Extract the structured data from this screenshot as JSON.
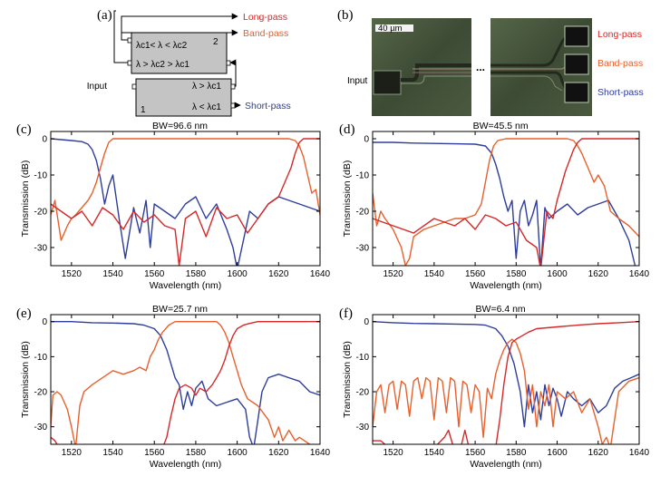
{
  "figure": {
    "panel_a": {
      "label": "(a)",
      "box2_number": "2",
      "box1_number": "1",
      "box2_row1": "λc1< λ < λc2",
      "box2_row2": "λ > λc2 > λc1",
      "box1_row1": "λ > λc1",
      "box1_row2": "λ < λc1",
      "input_label": "Input",
      "outputs": [
        {
          "name": "Long-pass",
          "color": "#d62828"
        },
        {
          "name": "Band-pass",
          "color": "#e8602c"
        },
        {
          "name": "Short-pass",
          "color": "#2e3d9c"
        }
      ]
    },
    "panel_b": {
      "label": "(b)",
      "scale_bar": "40 µm",
      "input_label": "Input",
      "ellipsis": "...",
      "outputs": [
        {
          "name": "Long-pass",
          "color": "#d62828"
        },
        {
          "name": "Band-pass",
          "color": "#e8602c"
        },
        {
          "name": "Short-pass",
          "color": "#2e3d9c"
        }
      ]
    }
  },
  "colors": {
    "long_pass": "#d62828",
    "band_pass": "#e8602c",
    "short_pass": "#2e3d9c"
  },
  "chart_data": [
    {
      "panel": "(c)",
      "type": "line",
      "bw_label": "BW=96.6 nm",
      "xlabel": "Wavelength (nm)",
      "ylabel": "Transmission (dB)",
      "xlim": [
        1510,
        1640
      ],
      "ylim": [
        -35,
        2
      ],
      "xticks": [
        1520,
        1540,
        1560,
        1580,
        1600,
        1620,
        1640
      ],
      "yticks": [
        0,
        -10,
        -20,
        -30
      ],
      "series": [
        {
          "name": "Short-pass",
          "color": "#2e3d9c",
          "x": [
            1510,
            1520,
            1525,
            1528,
            1530,
            1532,
            1534,
            1536,
            1538,
            1540,
            1543,
            1546,
            1550,
            1553,
            1556,
            1558,
            1560,
            1565,
            1570,
            1575,
            1580,
            1585,
            1590,
            1595,
            1598,
            1600,
            1603,
            1606,
            1610,
            1615,
            1620,
            1625,
            1630,
            1635,
            1640
          ],
          "values": [
            0,
            -0.5,
            -0.8,
            -1.5,
            -3,
            -6,
            -11,
            -18,
            -13,
            -10,
            -22,
            -33,
            -19,
            -26,
            -17,
            -30,
            -18,
            -20,
            -22,
            -18,
            -16,
            -22,
            -18,
            -25,
            -30,
            -36,
            -28,
            -20,
            -22,
            -18,
            -16,
            -17,
            -18,
            -19,
            -20
          ]
        },
        {
          "name": "Band-pass",
          "color": "#e8602c",
          "x": [
            1510,
            1512,
            1515,
            1518,
            1520,
            1522,
            1525,
            1528,
            1530,
            1532,
            1534,
            1536,
            1538,
            1540,
            1545,
            1550,
            1560,
            1570,
            1580,
            1590,
            1600,
            1610,
            1620,
            1625,
            1628,
            1630,
            1632,
            1634,
            1636,
            1638,
            1640
          ],
          "values": [
            -21,
            -17,
            -28,
            -24,
            -22,
            -21,
            -19,
            -17,
            -15,
            -12,
            -8,
            -4,
            -1,
            0,
            0,
            0,
            0,
            0,
            0,
            0,
            0,
            0,
            0,
            0,
            -0.5,
            -2,
            -5,
            -10,
            -15,
            -14,
            -21
          ]
        },
        {
          "name": "Long-pass",
          "color": "#d62828",
          "x": [
            1510,
            1515,
            1520,
            1525,
            1530,
            1535,
            1540,
            1545,
            1550,
            1555,
            1560,
            1565,
            1570,
            1572,
            1575,
            1580,
            1585,
            1590,
            1595,
            1600,
            1605,
            1610,
            1615,
            1620,
            1623,
            1626,
            1628,
            1630,
            1632,
            1635,
            1640
          ],
          "values": [
            -18,
            -20,
            -22,
            -20,
            -24,
            -19,
            -21,
            -25,
            -20,
            -23,
            -21,
            -24,
            -25,
            -35,
            -22,
            -20,
            -27,
            -19,
            -22,
            -21,
            -26,
            -22,
            -18,
            -16,
            -12,
            -8,
            -4,
            -1,
            0,
            0,
            0
          ]
        }
      ]
    },
    {
      "panel": "(d)",
      "type": "line",
      "bw_label": "BW=45.5 nm",
      "xlabel": "Wavelength (nm)",
      "ylabel": "Transmission (dB)",
      "xlim": [
        1510,
        1640
      ],
      "ylim": [
        -35,
        2
      ],
      "xticks": [
        1520,
        1540,
        1560,
        1580,
        1600,
        1620,
        1640
      ],
      "yticks": [
        0,
        -10,
        -20,
        -30
      ],
      "series": [
        {
          "name": "Short-pass",
          "color": "#2e3d9c",
          "x": [
            1510,
            1520,
            1530,
            1540,
            1550,
            1560,
            1565,
            1568,
            1570,
            1572,
            1574,
            1576,
            1578,
            1580,
            1582,
            1584,
            1586,
            1588,
            1590,
            1592,
            1594,
            1596,
            1600,
            1605,
            1610,
            1615,
            1620,
            1625,
            1630,
            1635,
            1638,
            1640
          ],
          "values": [
            -1,
            -1,
            -1.2,
            -1.3,
            -1.4,
            -1.5,
            -2,
            -4,
            -7,
            -11,
            -16,
            -20,
            -17,
            -33,
            -20,
            -17,
            -24,
            -21,
            -17,
            -36,
            -19,
            -22,
            -20,
            -18,
            -21,
            -19,
            -18,
            -17,
            -22,
            -28,
            -35,
            -36
          ]
        },
        {
          "name": "Band-pass",
          "color": "#e8602c",
          "x": [
            1510,
            1512,
            1514,
            1516,
            1520,
            1524,
            1526,
            1528,
            1530,
            1535,
            1540,
            1545,
            1550,
            1555,
            1560,
            1563,
            1565,
            1567,
            1569,
            1571,
            1575,
            1580,
            1590,
            1600,
            1605,
            1608,
            1610,
            1612,
            1615,
            1618,
            1620,
            1623,
            1626,
            1630,
            1635,
            1640
          ],
          "values": [
            -15,
            -24,
            -20,
            -22,
            -25,
            -30,
            -35,
            -33,
            -27,
            -25,
            -24,
            -23,
            -22,
            -22,
            -21,
            -18,
            -12,
            -6,
            -2,
            -0.5,
            0,
            0,
            0,
            0,
            0,
            -0.5,
            -2,
            -4,
            -8,
            -12,
            -10,
            -13,
            -20,
            -22,
            -24,
            -27
          ]
        },
        {
          "name": "Long-pass",
          "color": "#d62828",
          "x": [
            1510,
            1520,
            1530,
            1540,
            1550,
            1555,
            1560,
            1565,
            1570,
            1575,
            1580,
            1585,
            1590,
            1592,
            1595,
            1598,
            1600,
            1602,
            1604,
            1606,
            1608,
            1610,
            1612,
            1615,
            1620,
            1630,
            1640
          ],
          "values": [
            -22,
            -24,
            -26,
            -22,
            -24,
            -22,
            -25,
            -21,
            -22,
            -24,
            -23,
            -28,
            -30,
            -36,
            -20,
            -22,
            -17,
            -13,
            -9,
            -6,
            -3,
            -1,
            0,
            0,
            0,
            0,
            0
          ]
        }
      ]
    },
    {
      "panel": "(e)",
      "type": "line",
      "bw_label": "BW=25.7 nm",
      "xlabel": "Wavelength (nm)",
      "ylabel": "Transmission (dB)",
      "xlim": [
        1510,
        1640
      ],
      "ylim": [
        -35,
        2
      ],
      "xticks": [
        1520,
        1540,
        1560,
        1580,
        1600,
        1620,
        1640
      ],
      "yticks": [
        0,
        -10,
        -20,
        -30
      ],
      "series": [
        {
          "name": "Short-pass",
          "color": "#2e3d9c",
          "x": [
            1510,
            1520,
            1530,
            1540,
            1550,
            1555,
            1560,
            1563,
            1566,
            1568,
            1570,
            1572,
            1574,
            1576,
            1578,
            1580,
            1583,
            1586,
            1590,
            1595,
            1600,
            1604,
            1606,
            1608,
            1610,
            1612,
            1615,
            1620,
            1625,
            1630,
            1635,
            1640
          ],
          "values": [
            0,
            0,
            -0.3,
            -0.4,
            -0.6,
            -1,
            -2,
            -4,
            -8,
            -12,
            -16,
            -18,
            -25,
            -20,
            -24,
            -19,
            -17,
            -22,
            -24,
            -23,
            -22,
            -25,
            -33,
            -36,
            -28,
            -20,
            -16,
            -15,
            -16,
            -17,
            -20,
            -21
          ]
        },
        {
          "name": "Band-pass",
          "color": "#e8602c",
          "x": [
            1510,
            1511,
            1513,
            1515,
            1518,
            1520,
            1522,
            1524,
            1526,
            1530,
            1535,
            1540,
            1545,
            1550,
            1553,
            1556,
            1558,
            1560,
            1562,
            1564,
            1567,
            1570,
            1575,
            1580,
            1585,
            1590,
            1592,
            1594,
            1596,
            1598,
            1600,
            1602,
            1605,
            1610,
            1615,
            1618,
            1620,
            1622,
            1625,
            1628,
            1630,
            1635,
            1640
          ],
          "values": [
            -30,
            -21,
            -20,
            -21,
            -25,
            -30,
            -36,
            -24,
            -20,
            -18,
            -16,
            -14,
            -15,
            -14,
            -13,
            -14,
            -10,
            -8,
            -5,
            -3,
            -1,
            0,
            0,
            0,
            0,
            0,
            -1,
            -3,
            -6,
            -10,
            -14,
            -18,
            -22,
            -24,
            -28,
            -33,
            -30,
            -34,
            -31,
            -34,
            -33,
            -35,
            -36
          ]
        },
        {
          "name": "Long-pass",
          "color": "#d62828",
          "x": [
            1510,
            1511,
            1512,
            1514,
            1564,
            1566,
            1568,
            1570,
            1572,
            1575,
            1578,
            1580,
            1582,
            1585,
            1588,
            1590,
            1592,
            1594,
            1596,
            1598,
            1600,
            1603,
            1606,
            1610,
            1620,
            1630,
            1640
          ],
          "values": [
            -33,
            -33.5,
            -34,
            -36,
            -36,
            -33,
            -27,
            -22,
            -19,
            -18,
            -19,
            -21,
            -19,
            -20,
            -18,
            -16,
            -14,
            -11,
            -7,
            -4,
            -2,
            -1,
            -0.5,
            0,
            0,
            0,
            0
          ]
        }
      ]
    },
    {
      "panel": "(f)",
      "type": "line",
      "bw_label": "BW=6.4 nm",
      "xlabel": "Wavelength (nm)",
      "ylabel": "Transmission (dB)",
      "xlim": [
        1510,
        1640
      ],
      "ylim": [
        -35,
        2
      ],
      "xticks": [
        1520,
        1540,
        1560,
        1580,
        1600,
        1620,
        1640
      ],
      "yticks": [
        0,
        -10,
        -20,
        -30
      ],
      "series": [
        {
          "name": "Short-pass",
          "color": "#2e3d9c",
          "x": [
            1510,
            1520,
            1530,
            1540,
            1550,
            1560,
            1565,
            1570,
            1573,
            1576,
            1579,
            1582,
            1584,
            1586,
            1588,
            1590,
            1592,
            1594,
            1596,
            1598,
            1600,
            1602,
            1605,
            1608,
            1612,
            1616,
            1620,
            1624,
            1628,
            1632,
            1636,
            1640
          ],
          "values": [
            0,
            -0.3,
            -0.5,
            -0.6,
            -0.7,
            -0.8,
            -1,
            -2,
            -4,
            -7,
            -12,
            -20,
            -30,
            -18,
            -26,
            -20,
            -28,
            -18,
            -24,
            -19,
            -22,
            -27,
            -20,
            -22,
            -24,
            -22,
            -26,
            -24,
            -19,
            -17,
            -16,
            -15
          ]
        },
        {
          "name": "Band-pass",
          "color": "#e8602c",
          "x": [
            1510,
            1512,
            1514,
            1516,
            1518,
            1520,
            1522,
            1524,
            1526,
            1528,
            1530,
            1532,
            1534,
            1536,
            1538,
            1540,
            1542,
            1544,
            1546,
            1548,
            1550,
            1552,
            1554,
            1556,
            1558,
            1560,
            1562,
            1564,
            1566,
            1568,
            1570,
            1572,
            1574,
            1576,
            1578,
            1580,
            1582,
            1584,
            1586,
            1588,
            1590,
            1592,
            1594,
            1596,
            1598,
            1600,
            1604,
            1608,
            1612,
            1616,
            1620,
            1622,
            1624,
            1626,
            1630,
            1635,
            1640
          ],
          "values": [
            -30,
            -20,
            -18,
            -26,
            -18,
            -17,
            -25,
            -17,
            -18,
            -27,
            -17,
            -16,
            -22,
            -16,
            -17,
            -28,
            -16,
            -17,
            -26,
            -16,
            -17,
            -30,
            -17,
            -18,
            -26,
            -18,
            -20,
            -33,
            -19,
            -22,
            -15,
            -11,
            -8,
            -6,
            -5,
            -6,
            -9,
            -14,
            -25,
            -18,
            -30,
            -20,
            -24,
            -18,
            -30,
            -20,
            -22,
            -20,
            -26,
            -22,
            -30,
            -35,
            -33,
            -36,
            -20,
            -17,
            -16
          ]
        },
        {
          "name": "Long-pass",
          "color": "#d62828",
          "x": [
            1510,
            1514,
            1516,
            1520,
            1540,
            1545,
            1547,
            1549,
            1553,
            1555,
            1557,
            1560,
            1570,
            1572,
            1574,
            1576,
            1578,
            1580,
            1583,
            1586,
            1590,
            1600,
            1610,
            1620,
            1630,
            1640
          ],
          "values": [
            -34,
            -34,
            -35,
            -36,
            -36,
            -33,
            -31,
            -35,
            -36,
            -31,
            -36,
            -36,
            -36,
            -28,
            -18,
            -10,
            -6,
            -5,
            -4,
            -3,
            -2,
            -1.5,
            -1,
            -0.6,
            -0.3,
            0
          ]
        }
      ]
    }
  ]
}
